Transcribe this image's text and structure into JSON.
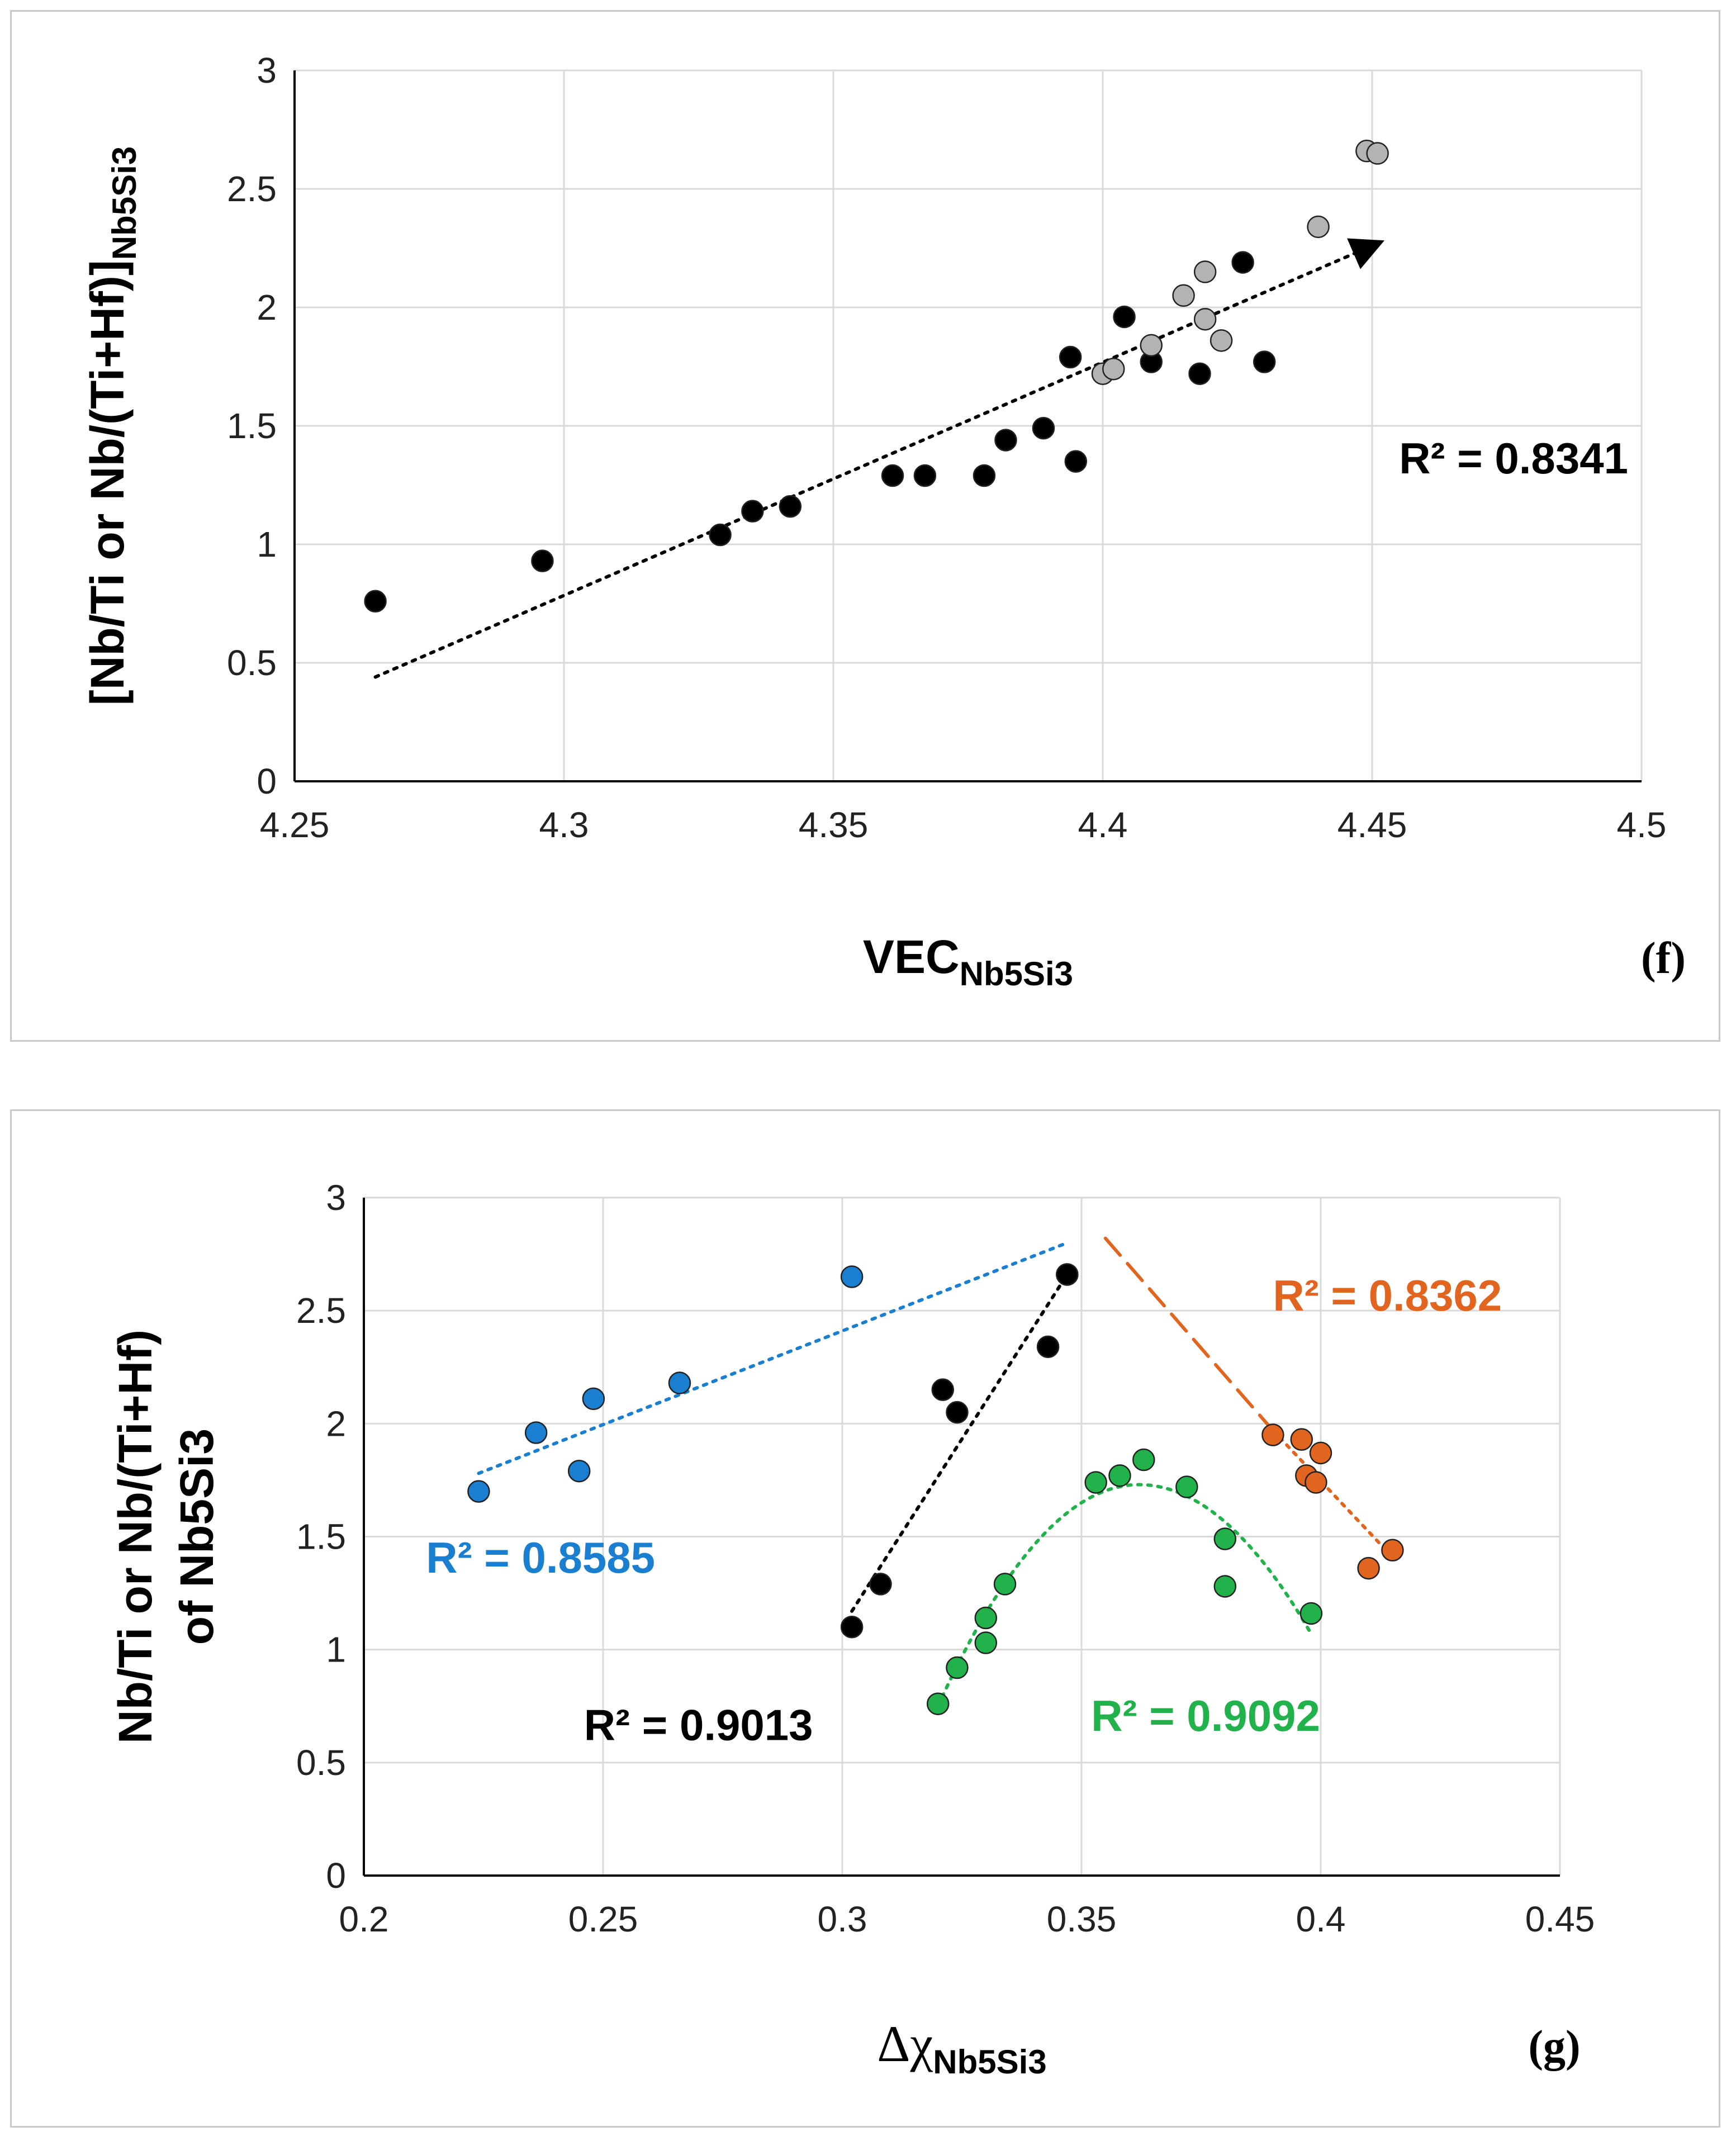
{
  "chart_data": [
    {
      "type": "scatter",
      "panel_label": "(f)",
      "xlabel": {
        "main": "VEC",
        "sub": "Nb5Si3"
      },
      "ylabel": {
        "main": "[Nb/Ti or Nb/(Ti+Hf)]",
        "sub": "Nb5Si3"
      },
      "xlim": [
        4.25,
        4.5
      ],
      "ylim": [
        0,
        3
      ],
      "xticks": [
        "4.25",
        "4.3",
        "4.35",
        "4.4",
        "4.45",
        "4.5"
      ],
      "yticks": [
        "0",
        "0.5",
        "1",
        "1.5",
        "2",
        "2.5",
        "3"
      ],
      "grid": true,
      "series": [
        {
          "name": "black",
          "color": "#000000",
          "points": [
            [
              4.265,
              0.76
            ],
            [
              4.296,
              0.93
            ],
            [
              4.329,
              1.04
            ],
            [
              4.335,
              1.14
            ],
            [
              4.342,
              1.16
            ],
            [
              4.361,
              1.29
            ],
            [
              4.367,
              1.29
            ],
            [
              4.378,
              1.29
            ],
            [
              4.382,
              1.44
            ],
            [
              4.389,
              1.49
            ],
            [
              4.395,
              1.35
            ],
            [
              4.394,
              1.79
            ],
            [
              4.404,
              1.96
            ],
            [
              4.409,
              1.77
            ],
            [
              4.418,
              1.72
            ],
            [
              4.426,
              2.19
            ],
            [
              4.43,
              1.77
            ]
          ]
        },
        {
          "name": "grey",
          "color": "#b3b3b3",
          "points": [
            [
              4.4,
              1.72
            ],
            [
              4.402,
              1.74
            ],
            [
              4.409,
              1.84
            ],
            [
              4.415,
              2.05
            ],
            [
              4.419,
              2.15
            ],
            [
              4.419,
              1.95
            ],
            [
              4.422,
              1.86
            ],
            [
              4.44,
              2.34
            ],
            [
              4.449,
              2.66
            ],
            [
              4.451,
              2.65
            ]
          ]
        }
      ],
      "trendline": {
        "x": [
          4.265,
          4.45
        ],
        "y": [
          0.44,
          2.26
        ],
        "color": "#000000",
        "style": "dotted",
        "arrow": true
      },
      "annotations": [
        {
          "text": "R² = 0.8341",
          "x": 4.455,
          "y": 1.3,
          "color": "#000000"
        }
      ]
    },
    {
      "type": "scatter",
      "panel_label": "(g)",
      "xlabel": {
        "main": "Δχ",
        "sub": "Nb5Si3"
      },
      "ylabel": {
        "line1": "Nb/Ti or Nb/(Ti+Hf)",
        "line2": "of Nb5Si3"
      },
      "xlim": [
        0.2,
        0.45
      ],
      "ylim": [
        0,
        3
      ],
      "xticks": [
        "0.2",
        "0.25",
        "0.3",
        "0.35",
        "0.4",
        "0.45"
      ],
      "yticks": [
        "0",
        "0.5",
        "1",
        "1.5",
        "2",
        "2.5",
        "3"
      ],
      "grid": true,
      "series": [
        {
          "name": "blue",
          "color": "#1a7fd0",
          "points": [
            [
              0.224,
              1.7
            ],
            [
              0.236,
              1.96
            ],
            [
              0.245,
              1.79
            ],
            [
              0.248,
              2.11
            ],
            [
              0.266,
              2.18
            ],
            [
              0.302,
              2.65
            ],
            [
              0.347,
              2.66
            ]
          ],
          "trend": {
            "kind": "linear",
            "x": [
              0.224,
              0.347
            ],
            "y": [
              1.78,
              2.8
            ],
            "style": "dotted"
          },
          "r2": {
            "text": "R² = 0.8585",
            "x": 0.213,
            "y": 1.34
          }
        },
        {
          "name": "black",
          "color": "#000000",
          "points": [
            [
              0.302,
              1.1
            ],
            [
              0.308,
              1.29
            ],
            [
              0.321,
              2.15
            ],
            [
              0.324,
              2.05
            ],
            [
              0.343,
              2.34
            ],
            [
              0.347,
              2.66
            ]
          ],
          "trend": {
            "kind": "linear",
            "x": [
              0.302,
              0.347
            ],
            "y": [
              1.17,
              2.66
            ],
            "style": "dotted"
          },
          "r2": {
            "text": "R² = 0.9013",
            "x": 0.246,
            "y": 0.6
          }
        },
        {
          "name": "green",
          "color": "#22b24c",
          "points": [
            [
              0.32,
              0.76
            ],
            [
              0.324,
              0.92
            ],
            [
              0.33,
              1.14
            ],
            [
              0.33,
              1.03
            ],
            [
              0.334,
              1.29
            ],
            [
              0.353,
              1.74
            ],
            [
              0.358,
              1.77
            ],
            [
              0.363,
              1.84
            ],
            [
              0.372,
              1.72
            ],
            [
              0.38,
              1.49
            ],
            [
              0.38,
              1.28
            ],
            [
              0.398,
              1.16
            ]
          ],
          "trend": {
            "kind": "quadratic",
            "vertex_x": 0.362,
            "vertex_y": 1.73,
            "x_range": [
              0.32,
              0.398
            ],
            "y_left": 0.75,
            "y_right": 1.07,
            "style": "dotted"
          },
          "r2": {
            "text": "R² = 0.9092",
            "x": 0.352,
            "y": 0.64
          }
        },
        {
          "name": "orange",
          "color": "#e2651f",
          "points": [
            [
              0.39,
              1.95
            ],
            [
              0.396,
              1.93
            ],
            [
              0.397,
              1.77
            ],
            [
              0.399,
              1.74
            ],
            [
              0.4,
              1.87
            ],
            [
              0.41,
              1.36
            ],
            [
              0.415,
              1.44
            ]
          ],
          "trend": {
            "kind": "linear",
            "x": [
              0.355,
              0.39
            ],
            "y": [
              2.82,
              1.97
            ],
            "style": "dashed"
          },
          "trend2": {
            "kind": "linear",
            "x": [
              0.39,
              0.415
            ],
            "y": [
              1.97,
              1.41
            ],
            "style": "dotted"
          },
          "r2": {
            "text": "R² = 0.8362",
            "x": 0.39,
            "y": 2.5
          }
        }
      ]
    }
  ]
}
